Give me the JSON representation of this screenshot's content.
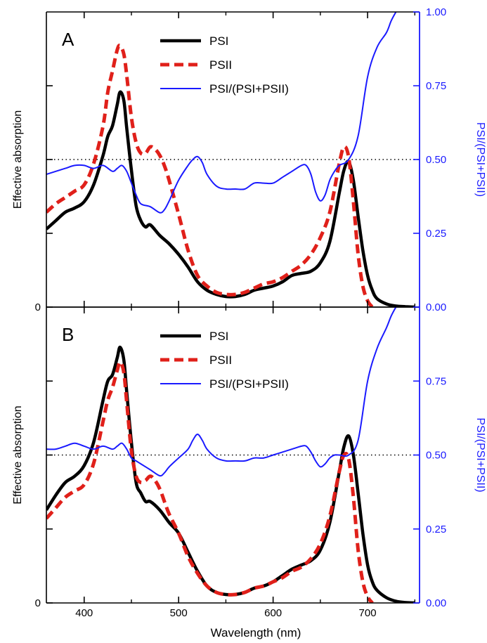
{
  "chart_data": [
    {
      "type": "line",
      "panel_label": "A",
      "xlabel": "",
      "ylabel_left": "Effective absorption",
      "ylabel_right": "PSI/(PSI+PSII)",
      "xlim": [
        360,
        755
      ],
      "ylim_left": [
        0,
        1.4
      ],
      "ylim_right": [
        0,
        1.0
      ],
      "left_ticks": [
        0,
        0.35,
        0.7,
        1.05
      ],
      "left_tick_labels": [
        "0",
        "",
        "",
        ""
      ],
      "right_ticks": [
        0,
        0.25,
        0.5,
        0.75,
        1.0
      ],
      "right_tick_labels": [
        "0.00",
        "0.25",
        "0.50",
        "0.75",
        "1.00"
      ],
      "x_ticks": [
        400,
        500,
        600,
        700
      ],
      "reference_line": {
        "axis": "right",
        "y": 0.5,
        "style": "dotted"
      },
      "legend_position": "top-center",
      "series": [
        {
          "name": "PSI",
          "axis": "left",
          "color": "#000000",
          "dash": "solid",
          "x": [
            360,
            370,
            380,
            390,
            400,
            410,
            420,
            425,
            430,
            435,
            438,
            442,
            445,
            450,
            455,
            460,
            465,
            470,
            480,
            490,
            500,
            510,
            520,
            530,
            540,
            550,
            560,
            570,
            580,
            590,
            600,
            610,
            620,
            630,
            640,
            650,
            660,
            670,
            675,
            680,
            685,
            690,
            695,
            700,
            705,
            710,
            720,
            730,
            740,
            750
          ],
          "values": [
            0.37,
            0.41,
            0.45,
            0.47,
            0.5,
            0.58,
            0.72,
            0.81,
            0.86,
            0.96,
            1.02,
            0.98,
            0.85,
            0.65,
            0.48,
            0.41,
            0.38,
            0.39,
            0.34,
            0.3,
            0.25,
            0.19,
            0.12,
            0.08,
            0.06,
            0.05,
            0.05,
            0.06,
            0.08,
            0.09,
            0.1,
            0.12,
            0.15,
            0.16,
            0.17,
            0.21,
            0.31,
            0.54,
            0.65,
            0.69,
            0.6,
            0.43,
            0.27,
            0.15,
            0.08,
            0.04,
            0.015,
            0.005,
            0.002,
            0.0
          ]
        },
        {
          "name": "PSII",
          "axis": "left",
          "color": "#e0201a",
          "dash": "dashed",
          "x": [
            360,
            370,
            380,
            390,
            400,
            410,
            420,
            425,
            430,
            435,
            438,
            442,
            445,
            450,
            455,
            460,
            465,
            470,
            475,
            480,
            485,
            490,
            500,
            510,
            520,
            530,
            540,
            550,
            560,
            570,
            580,
            590,
            600,
            610,
            620,
            630,
            640,
            650,
            660,
            670,
            675,
            680,
            685,
            690,
            695,
            700,
            705
          ],
          "values": [
            0.45,
            0.49,
            0.52,
            0.55,
            0.58,
            0.68,
            0.86,
            1.02,
            1.12,
            1.22,
            1.24,
            1.2,
            1.1,
            0.9,
            0.78,
            0.73,
            0.73,
            0.76,
            0.75,
            0.72,
            0.67,
            0.6,
            0.44,
            0.27,
            0.15,
            0.1,
            0.07,
            0.06,
            0.06,
            0.07,
            0.09,
            0.11,
            0.12,
            0.14,
            0.17,
            0.2,
            0.25,
            0.33,
            0.45,
            0.68,
            0.76,
            0.71,
            0.5,
            0.25,
            0.1,
            0.03,
            0.0
          ]
        },
        {
          "name": "PSI/(PSI+PSII)",
          "axis": "right",
          "color": "#1a1aff",
          "dash": "solid",
          "x": [
            360,
            370,
            380,
            390,
            400,
            410,
            420,
            430,
            435,
            440,
            445,
            450,
            455,
            460,
            470,
            480,
            485,
            490,
            500,
            510,
            515,
            520,
            525,
            530,
            540,
            550,
            560,
            570,
            580,
            590,
            600,
            610,
            620,
            630,
            635,
            640,
            645,
            650,
            655,
            660,
            665,
            670,
            680,
            690,
            700,
            710,
            720,
            725,
            730
          ],
          "values": [
            0.45,
            0.46,
            0.47,
            0.48,
            0.48,
            0.47,
            0.48,
            0.46,
            0.47,
            0.48,
            0.46,
            0.42,
            0.38,
            0.35,
            0.34,
            0.32,
            0.33,
            0.36,
            0.43,
            0.48,
            0.5,
            0.51,
            0.49,
            0.45,
            0.41,
            0.4,
            0.4,
            0.4,
            0.42,
            0.42,
            0.42,
            0.44,
            0.46,
            0.48,
            0.48,
            0.45,
            0.39,
            0.36,
            0.38,
            0.43,
            0.46,
            0.48,
            0.5,
            0.58,
            0.78,
            0.88,
            0.93,
            0.97,
            1.0
          ]
        }
      ]
    },
    {
      "type": "line",
      "panel_label": "B",
      "xlabel": "Wavelength (nm)",
      "ylabel_left": "Effective absorption",
      "ylabel_right": "PSI/(PSI+PSII)",
      "xlim": [
        360,
        755
      ],
      "ylim_left": [
        0,
        1.4
      ],
      "ylim_right": [
        0,
        1.0
      ],
      "left_ticks": [
        0,
        0.35,
        0.7,
        1.05
      ],
      "left_tick_labels": [
        "0",
        "",
        "",
        ""
      ],
      "right_ticks": [
        0,
        0.25,
        0.5,
        0.75,
        1.0
      ],
      "right_tick_labels": [
        "0.00",
        "0.25",
        "0.50",
        "0.75",
        ""
      ],
      "x_ticks": [
        400,
        500,
        600,
        700
      ],
      "x_tick_labels": [
        "400",
        "500",
        "600",
        "700"
      ],
      "reference_line": {
        "axis": "right",
        "y": 0.5,
        "style": "dotted"
      },
      "legend_position": "top-center",
      "series": [
        {
          "name": "PSI",
          "axis": "left",
          "color": "#000000",
          "dash": "solid",
          "x": [
            360,
            370,
            380,
            390,
            400,
            410,
            420,
            425,
            430,
            435,
            438,
            442,
            445,
            450,
            455,
            460,
            465,
            470,
            480,
            490,
            500,
            510,
            520,
            530,
            540,
            550,
            560,
            570,
            580,
            590,
            600,
            610,
            620,
            630,
            640,
            650,
            660,
            670,
            675,
            680,
            685,
            690,
            695,
            700,
            705,
            710,
            720,
            730,
            740,
            750
          ],
          "values": [
            0.44,
            0.51,
            0.57,
            0.6,
            0.65,
            0.76,
            0.96,
            1.05,
            1.08,
            1.16,
            1.21,
            1.15,
            1.0,
            0.76,
            0.57,
            0.52,
            0.48,
            0.48,
            0.44,
            0.38,
            0.33,
            0.24,
            0.15,
            0.08,
            0.05,
            0.04,
            0.04,
            0.05,
            0.07,
            0.08,
            0.1,
            0.13,
            0.16,
            0.18,
            0.2,
            0.25,
            0.38,
            0.62,
            0.74,
            0.79,
            0.7,
            0.52,
            0.33,
            0.18,
            0.1,
            0.06,
            0.025,
            0.008,
            0.002,
            0.0
          ]
        },
        {
          "name": "PSII",
          "axis": "left",
          "color": "#e0201a",
          "dash": "dashed",
          "x": [
            360,
            370,
            380,
            390,
            400,
            410,
            420,
            425,
            430,
            435,
            438,
            442,
            445,
            450,
            455,
            460,
            465,
            470,
            475,
            480,
            485,
            490,
            500,
            510,
            520,
            530,
            540,
            550,
            560,
            570,
            580,
            590,
            600,
            610,
            620,
            630,
            640,
            650,
            660,
            670,
            675,
            680,
            685,
            690,
            695,
            700,
            705
          ],
          "values": [
            0.4,
            0.45,
            0.5,
            0.53,
            0.56,
            0.66,
            0.86,
            0.96,
            1.02,
            1.1,
            1.14,
            1.09,
            0.95,
            0.72,
            0.6,
            0.57,
            0.58,
            0.6,
            0.58,
            0.54,
            0.48,
            0.42,
            0.33,
            0.22,
            0.14,
            0.08,
            0.05,
            0.04,
            0.04,
            0.05,
            0.07,
            0.08,
            0.1,
            0.12,
            0.15,
            0.17,
            0.21,
            0.28,
            0.41,
            0.62,
            0.7,
            0.68,
            0.5,
            0.25,
            0.1,
            0.03,
            0.0
          ]
        },
        {
          "name": "PSI/(PSI+PSII)",
          "axis": "right",
          "color": "#1a1aff",
          "dash": "solid",
          "x": [
            360,
            370,
            380,
            390,
            400,
            410,
            420,
            430,
            435,
            440,
            445,
            450,
            455,
            460,
            470,
            480,
            485,
            490,
            500,
            510,
            515,
            520,
            525,
            530,
            540,
            550,
            560,
            570,
            580,
            590,
            600,
            610,
            620,
            630,
            635,
            640,
            645,
            650,
            655,
            660,
            665,
            670,
            680,
            690,
            700,
            710,
            720,
            725,
            730
          ],
          "values": [
            0.52,
            0.52,
            0.53,
            0.54,
            0.53,
            0.52,
            0.53,
            0.52,
            0.53,
            0.54,
            0.52,
            0.49,
            0.48,
            0.47,
            0.45,
            0.43,
            0.44,
            0.46,
            0.49,
            0.52,
            0.55,
            0.57,
            0.55,
            0.52,
            0.49,
            0.48,
            0.48,
            0.48,
            0.49,
            0.49,
            0.5,
            0.51,
            0.52,
            0.53,
            0.53,
            0.51,
            0.48,
            0.46,
            0.47,
            0.49,
            0.5,
            0.5,
            0.5,
            0.55,
            0.75,
            0.86,
            0.93,
            0.97,
            1.0
          ]
        }
      ]
    }
  ]
}
